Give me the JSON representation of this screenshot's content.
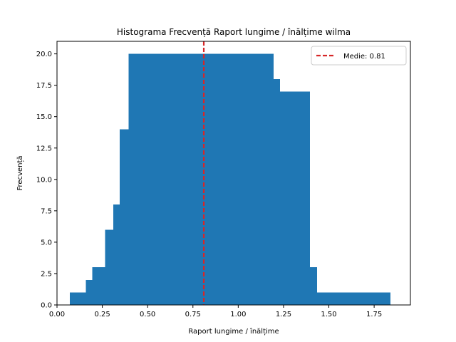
{
  "chart_data": {
    "type": "bar",
    "title": "Histograma Frecvență Raport lungime / înălțime wilma",
    "xlabel": "Raport lungime / înălțime",
    "ylabel": "Frecvență",
    "xlim": [
      0.0,
      1.95
    ],
    "ylim": [
      0,
      21
    ],
    "grid": false,
    "legend_position": "top-right",
    "bar_color": "#1f77b4",
    "bins": [
      {
        "x0": 0.07,
        "x1": 0.16,
        "count": 1
      },
      {
        "x0": 0.16,
        "x1": 0.195,
        "count": 2
      },
      {
        "x0": 0.195,
        "x1": 0.265,
        "count": 3
      },
      {
        "x0": 0.265,
        "x1": 0.31,
        "count": 6
      },
      {
        "x0": 0.31,
        "x1": 0.345,
        "count": 8
      },
      {
        "x0": 0.345,
        "x1": 0.395,
        "count": 14
      },
      {
        "x0": 0.395,
        "x1": 1.195,
        "count": 20
      },
      {
        "x0": 1.195,
        "x1": 1.23,
        "count": 18
      },
      {
        "x0": 1.23,
        "x1": 1.395,
        "count": 17
      },
      {
        "x0": 1.395,
        "x1": 1.435,
        "count": 3
      },
      {
        "x0": 1.435,
        "x1": 1.84,
        "count": 1
      }
    ],
    "x_ticks": [
      0.0,
      0.25,
      0.5,
      0.75,
      1.0,
      1.25,
      1.5,
      1.75
    ],
    "x_tick_labels": [
      "0.00",
      "0.25",
      "0.50",
      "0.75",
      "1.00",
      "1.25",
      "1.50",
      "1.75"
    ],
    "y_ticks": [
      0,
      2.5,
      5,
      7.5,
      10,
      12.5,
      15,
      17.5,
      20
    ],
    "y_tick_labels": [
      "0.0",
      "2.5",
      "5.0",
      "7.5",
      "10.0",
      "12.5",
      "15.0",
      "17.5",
      "20.0"
    ],
    "mean_line": {
      "x": 0.81,
      "color": "#d62728",
      "label": "Medie: 0.81"
    }
  }
}
